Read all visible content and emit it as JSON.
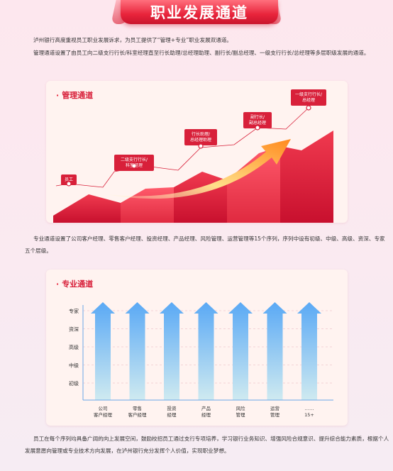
{
  "page_title": "职业发展通道",
  "paragraphs": {
    "intro_1": "泸州银行高度重视员工职业发展诉求，为员工提供了“管理+专业”职业发展双通道。",
    "intro_2": "管理通道设置了由员工向二级支行行长/科室经理直至行长助理/总经理助理、副行长/副总经理、一级支行行长/总经理等多层职级发展的通道。",
    "professional": "专业通道设置了公司客户经理、零售客户经理、投资经理、产品经理、风险管理、运营管理等15个序列，序列中设有初级、中级、高级、资深、专家五个层级。",
    "closing": "员工在每个序列均具备广阔的向上发展空间，鼓励校招员工通过支行专项培养，学习银行业务知识、增强风险合规意识、提升综合能力素质，根据个人发展意愿向管理或专业技术方向发展，在泸州银行充分发挥个人价值，实现职业梦想。"
  },
  "management_card": {
    "title": "管理通道",
    "steps": [
      {
        "label_lines": [
          "员工"
        ]
      },
      {
        "label_lines": [
          "二级支行行长/",
          "科室经理"
        ]
      },
      {
        "label_lines": [
          "行长助理/",
          "总经理助理"
        ]
      },
      {
        "label_lines": [
          "副行长/",
          "副总经理"
        ]
      },
      {
        "label_lines": [
          "一级支行行长/",
          "总经理"
        ]
      }
    ],
    "colors": {
      "accent": "#e8243b",
      "dark_red": "#c8102e",
      "arrow_start": "#ffe08a",
      "arrow_end": "#ff8a1e"
    }
  },
  "professional_card": {
    "title": "专业通道",
    "levels": [
      "专家",
      "资深",
      "高级",
      "中级",
      "初级"
    ],
    "tracks": [
      {
        "label_lines": [
          "公司",
          "客户经理"
        ]
      },
      {
        "label_lines": [
          "零售",
          "客户经理"
        ]
      },
      {
        "label_lines": [
          "投资",
          "经理"
        ]
      },
      {
        "label_lines": [
          "产品",
          "经理"
        ]
      },
      {
        "label_lines": [
          "风险",
          "管理"
        ]
      },
      {
        "label_lines": [
          "运营",
          "管理"
        ]
      },
      {
        "label_lines": [
          "……",
          "15+"
        ]
      }
    ],
    "colors": {
      "arrow_top": "#5aa9f5",
      "arrow_bottom": "#c8e6ef",
      "axis": "#6aa7e8"
    }
  }
}
